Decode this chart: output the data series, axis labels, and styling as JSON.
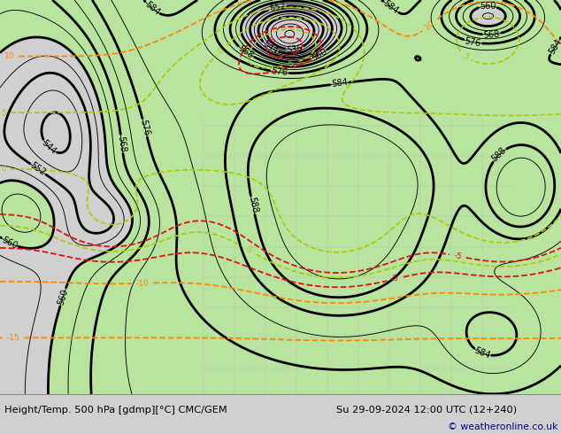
{
  "title_left": "Height/Temp. 500 hPa [gdmp][°C] CMC/GEM",
  "title_right": "Su 29-09-2024 12:00 UTC (12+240)",
  "copyright": "© weatheronline.co.uk",
  "bg_color": "#d0d0d0",
  "map_bg": "#e0e0e0",
  "green_fill": "#b8e4a0",
  "figure_width": 6.34,
  "figure_height": 4.9,
  "dpi": 100,
  "bottom_bar_color": "#ffffff",
  "title_font_size": 8.2,
  "copyright_color": "#000090"
}
